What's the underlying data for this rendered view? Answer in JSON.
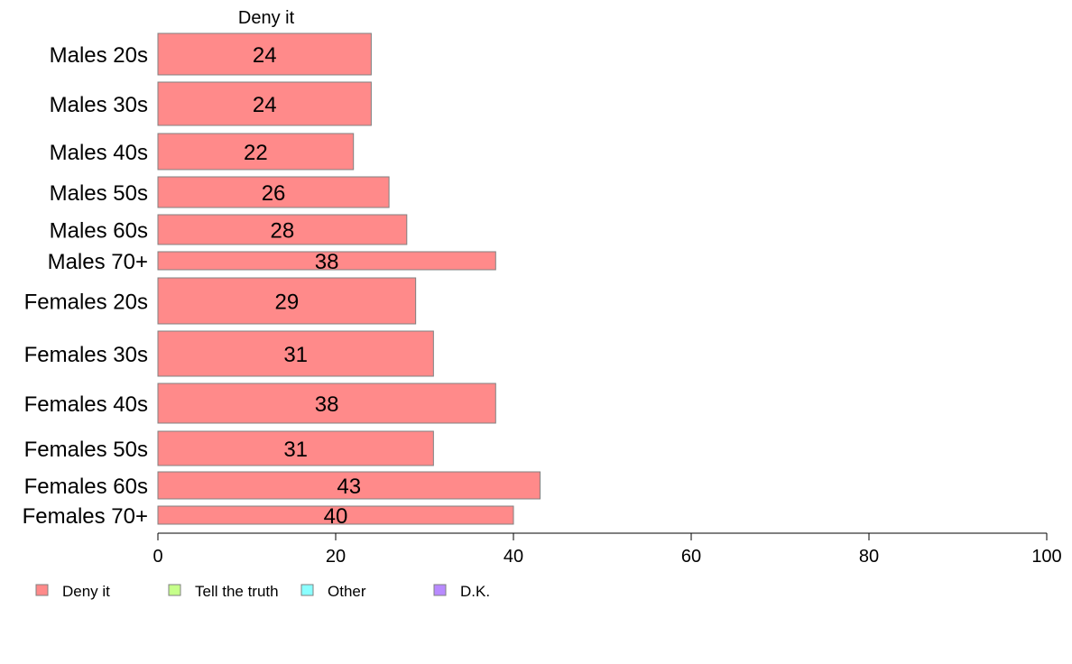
{
  "chart_data": {
    "type": "bar",
    "orientation": "horizontal",
    "stacked": true,
    "series_label": "Deny it",
    "categories": [
      "Males 20s",
      "Males 30s",
      "Males 40s",
      "Males 50s",
      "Males 60s",
      "Males 70+",
      "Females 20s",
      "Females 30s",
      "Females 40s",
      "Females 50s",
      "Females 60s",
      "Females 70+"
    ],
    "series": [
      {
        "name": "Deny it",
        "color": "#ff8a8a",
        "values": [
          24,
          24,
          22,
          26,
          28,
          38,
          29,
          31,
          38,
          31,
          43,
          40
        ]
      }
    ],
    "xlim": [
      0,
      100
    ],
    "xticks": [
      0,
      20,
      40,
      60,
      80,
      100
    ],
    "grid": false,
    "legend_position": "bottom-left",
    "legend": [
      {
        "label": "Deny it",
        "color": "#ff8a8a"
      },
      {
        "label": "Tell the truth",
        "color": "#c6ff8a"
      },
      {
        "label": "Other",
        "color": "#8affff"
      },
      {
        "label": "D.K.",
        "color": "#b88aff"
      }
    ]
  }
}
